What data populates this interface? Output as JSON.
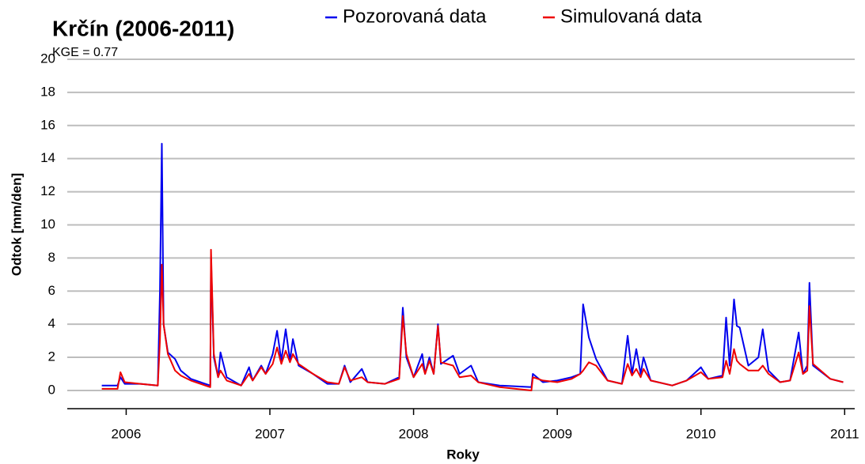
{
  "chart_data": {
    "type": "line",
    "title": "Krčín (2006-2011)",
    "annotation": "KGE =  0.77",
    "x_label": "Roky",
    "y_label": "Odtok [mm/den]",
    "xlim": [
      2005.59,
      2011.07
    ],
    "ylim": [
      -1.1,
      20
    ],
    "xticks": [
      2006,
      2007,
      2008,
      2009,
      2010,
      2011
    ],
    "yticks": [
      0,
      2,
      4,
      6,
      8,
      10,
      12,
      14,
      16,
      18,
      20
    ],
    "grid": true,
    "legend": "top",
    "x": [
      2005.83,
      2005.94,
      2005.96,
      2005.99,
      2006.1,
      2006.22,
      2006.235,
      2006.248,
      2006.26,
      2006.29,
      2006.34,
      2006.38,
      2006.45,
      2006.55,
      2006.585,
      2006.59,
      2006.61,
      2006.64,
      2006.656,
      2006.7,
      2006.8,
      2006.855,
      2006.88,
      2006.94,
      2006.97,
      2007.02,
      2007.05,
      2007.08,
      2007.11,
      2007.14,
      2007.16,
      2007.2,
      2007.3,
      2007.4,
      2007.48,
      2007.52,
      2007.56,
      2007.64,
      2007.68,
      2007.8,
      2007.9,
      2007.925,
      2007.95,
      2008.0,
      2008.06,
      2008.08,
      2008.11,
      2008.14,
      2008.17,
      2008.19,
      2008.275,
      2008.32,
      2008.4,
      2008.45,
      2008.6,
      2008.82,
      2008.83,
      2008.9,
      2009.0,
      2009.1,
      2009.16,
      2009.18,
      2009.22,
      2009.27,
      2009.35,
      2009.45,
      2009.49,
      2009.52,
      2009.55,
      2009.58,
      2009.6,
      2009.65,
      2009.8,
      2009.9,
      2010.0,
      2010.05,
      2010.15,
      2010.175,
      2010.2,
      2010.23,
      2010.25,
      2010.27,
      2010.33,
      2010.4,
      2010.43,
      2010.47,
      2010.55,
      2010.62,
      2010.68,
      2010.71,
      2010.74,
      2010.755,
      2010.78,
      2010.9,
      2010.99
    ],
    "series": [
      {
        "name": "Pozorovaná data",
        "color": "#0000ee",
        "values": [
          0.3,
          0.3,
          0.8,
          0.4,
          0.4,
          0.3,
          6.0,
          14.9,
          4.0,
          2.3,
          1.9,
          1.2,
          0.7,
          0.4,
          0.3,
          8.0,
          2.0,
          0.8,
          2.3,
          0.8,
          0.3,
          1.4,
          0.6,
          1.5,
          1.0,
          2.2,
          3.6,
          1.8,
          3.7,
          1.8,
          3.1,
          1.5,
          1.0,
          0.4,
          0.4,
          1.5,
          0.5,
          1.3,
          0.5,
          0.4,
          0.8,
          5.0,
          2.0,
          0.8,
          2.2,
          1.0,
          2.0,
          1.0,
          4.0,
          1.6,
          2.1,
          1.0,
          1.5,
          0.5,
          0.3,
          0.2,
          1.0,
          0.5,
          0.6,
          0.8,
          1.0,
          5.2,
          3.2,
          1.9,
          0.6,
          0.4,
          3.3,
          1.0,
          2.5,
          1.0,
          2.0,
          0.6,
          0.3,
          0.6,
          1.4,
          0.7,
          0.9,
          4.4,
          1.5,
          5.5,
          3.9,
          3.8,
          1.5,
          2.0,
          3.7,
          1.2,
          0.5,
          0.6,
          3.5,
          1.0,
          1.5,
          6.5,
          1.5,
          0.7,
          0.5
        ]
      },
      {
        "name": "Simulovaná data",
        "color": "#ee0000",
        "values": [
          0.1,
          0.1,
          1.1,
          0.5,
          0.4,
          0.3,
          3.0,
          7.6,
          4.0,
          2.2,
          1.2,
          0.9,
          0.6,
          0.3,
          0.2,
          8.5,
          2.2,
          0.8,
          1.2,
          0.6,
          0.3,
          1.0,
          0.6,
          1.4,
          1.0,
          1.6,
          2.6,
          1.6,
          2.4,
          1.7,
          2.2,
          1.6,
          1.0,
          0.5,
          0.4,
          1.4,
          0.6,
          0.8,
          0.5,
          0.4,
          0.7,
          4.5,
          2.2,
          0.8,
          1.6,
          1.0,
          1.8,
          1.0,
          3.9,
          1.7,
          1.5,
          0.8,
          0.9,
          0.5,
          0.2,
          0.0,
          0.8,
          0.6,
          0.5,
          0.7,
          1.0,
          1.2,
          1.7,
          1.5,
          0.6,
          0.4,
          1.6,
          0.9,
          1.3,
          0.8,
          1.3,
          0.6,
          0.3,
          0.6,
          1.1,
          0.7,
          0.8,
          1.8,
          1.0,
          2.5,
          1.8,
          1.6,
          1.2,
          1.2,
          1.5,
          1.0,
          0.5,
          0.6,
          2.3,
          1.0,
          1.2,
          5.1,
          1.6,
          0.7,
          0.5
        ]
      }
    ]
  }
}
